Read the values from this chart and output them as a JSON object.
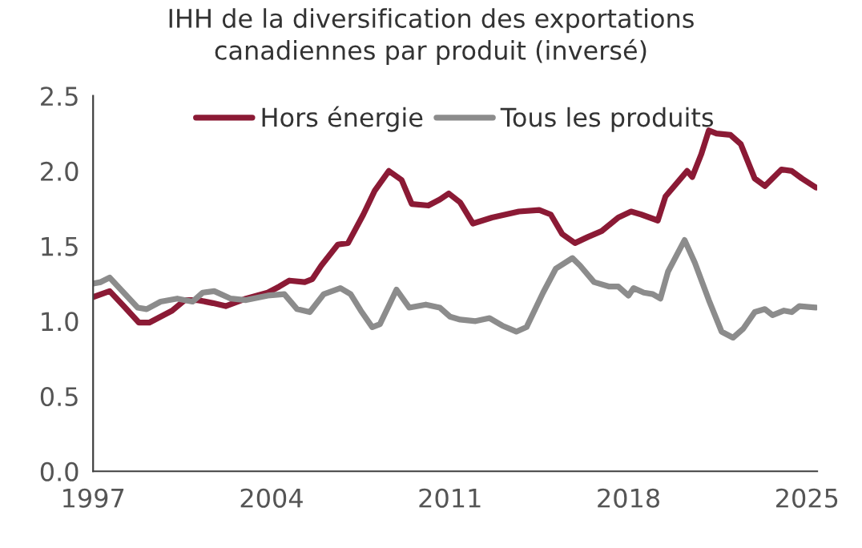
{
  "chart_data": {
    "type": "line",
    "title": "IHH de la diversification des exportations\ncanadiennes par produit (inversé)",
    "xlim": [
      1997,
      2025.4
    ],
    "xticks": [
      1997,
      2004,
      2011,
      2018,
      2025
    ],
    "ylim": [
      0,
      2.5
    ],
    "yticks": [
      {
        "value": 0,
        "label": "0.0"
      },
      {
        "value": 0.5,
        "label": "0.5"
      },
      {
        "value": 1,
        "label": "1.0"
      },
      {
        "value": 1.5,
        "label": "1.5"
      },
      {
        "value": 2,
        "label": "2.0"
      },
      {
        "value": 2.5,
        "label": "2.5"
      }
    ],
    "grid": false,
    "legend": "top",
    "marker": "none",
    "line_style": "solid",
    "series": [
      {
        "name": "Hors énergie",
        "color": "#8b1a35",
        "x": [
          1997,
          1997.65,
          1998.2,
          1998.8,
          1999.2,
          2000.1,
          2000.6,
          2001.1,
          2001.7,
          2002.2,
          2003.0,
          2003.85,
          2004.3,
          2004.7,
          2005.3,
          2005.6,
          2005.95,
          2006.6,
          2007.0,
          2007.6,
          2008.05,
          2008.6,
          2009.1,
          2009.5,
          2010.15,
          2010.6,
          2010.95,
          2011.4,
          2011.9,
          2012.65,
          2013.7,
          2014.5,
          2014.95,
          2015.4,
          2015.9,
          2016.4,
          2016.95,
          2017.6,
          2018.1,
          2018.5,
          2019.15,
          2019.45,
          2020.0,
          2020.3,
          2020.5,
          2020.85,
          2021.15,
          2021.45,
          2022.0,
          2022.4,
          2022.95,
          2023.35,
          2024.0,
          2024.4,
          2024.8,
          2025.35
        ],
        "values": [
          1.16,
          1.2,
          1.1,
          0.99,
          0.99,
          1.07,
          1.14,
          1.14,
          1.12,
          1.1,
          1.15,
          1.19,
          1.23,
          1.27,
          1.26,
          1.28,
          1.37,
          1.51,
          1.52,
          1.71,
          1.87,
          2.0,
          1.94,
          1.78,
          1.77,
          1.81,
          1.85,
          1.79,
          1.65,
          1.69,
          1.73,
          1.74,
          1.71,
          1.58,
          1.52,
          1.56,
          1.6,
          1.69,
          1.73,
          1.71,
          1.67,
          1.83,
          1.94,
          2.0,
          1.96,
          2.11,
          2.27,
          2.25,
          2.24,
          2.18,
          1.95,
          1.9,
          2.01,
          2.0,
          1.95,
          1.89
        ]
      },
      {
        "name": "Tous les produits",
        "color": "#8c8c8c",
        "x": [
          1997,
          1997.3,
          1997.65,
          1998.2,
          1998.75,
          1999.1,
          1999.65,
          2000.3,
          2000.9,
          2001.3,
          2001.75,
          2002.4,
          2003.0,
          2003.85,
          2004.5,
          2005.0,
          2005.5,
          2006.05,
          2006.7,
          2007.1,
          2007.5,
          2007.95,
          2008.25,
          2008.9,
          2009.4,
          2010.05,
          2010.6,
          2011.0,
          2011.4,
          2012.0,
          2012.55,
          2013.05,
          2013.6,
          2014.0,
          2014.65,
          2015.15,
          2015.8,
          2016.1,
          2016.65,
          2017.25,
          2017.6,
          2018.0,
          2018.2,
          2018.6,
          2018.95,
          2019.25,
          2019.55,
          2020.2,
          2020.6,
          2021.15,
          2021.65,
          2022.1,
          2022.5,
          2022.95,
          2023.35,
          2023.65,
          2024.1,
          2024.4,
          2024.7,
          2025.35
        ],
        "values": [
          1.25,
          1.26,
          1.29,
          1.19,
          1.09,
          1.08,
          1.13,
          1.15,
          1.13,
          1.19,
          1.2,
          1.15,
          1.14,
          1.17,
          1.18,
          1.08,
          1.06,
          1.18,
          1.22,
          1.18,
          1.07,
          0.96,
          0.98,
          1.21,
          1.09,
          1.11,
          1.09,
          1.03,
          1.01,
          1.0,
          1.02,
          0.97,
          0.93,
          0.96,
          1.19,
          1.35,
          1.42,
          1.37,
          1.26,
          1.23,
          1.23,
          1.17,
          1.22,
          1.19,
          1.18,
          1.15,
          1.33,
          1.54,
          1.39,
          1.14,
          0.93,
          0.89,
          0.95,
          1.06,
          1.08,
          1.04,
          1.07,
          1.06,
          1.1,
          1.09
        ]
      }
    ]
  }
}
